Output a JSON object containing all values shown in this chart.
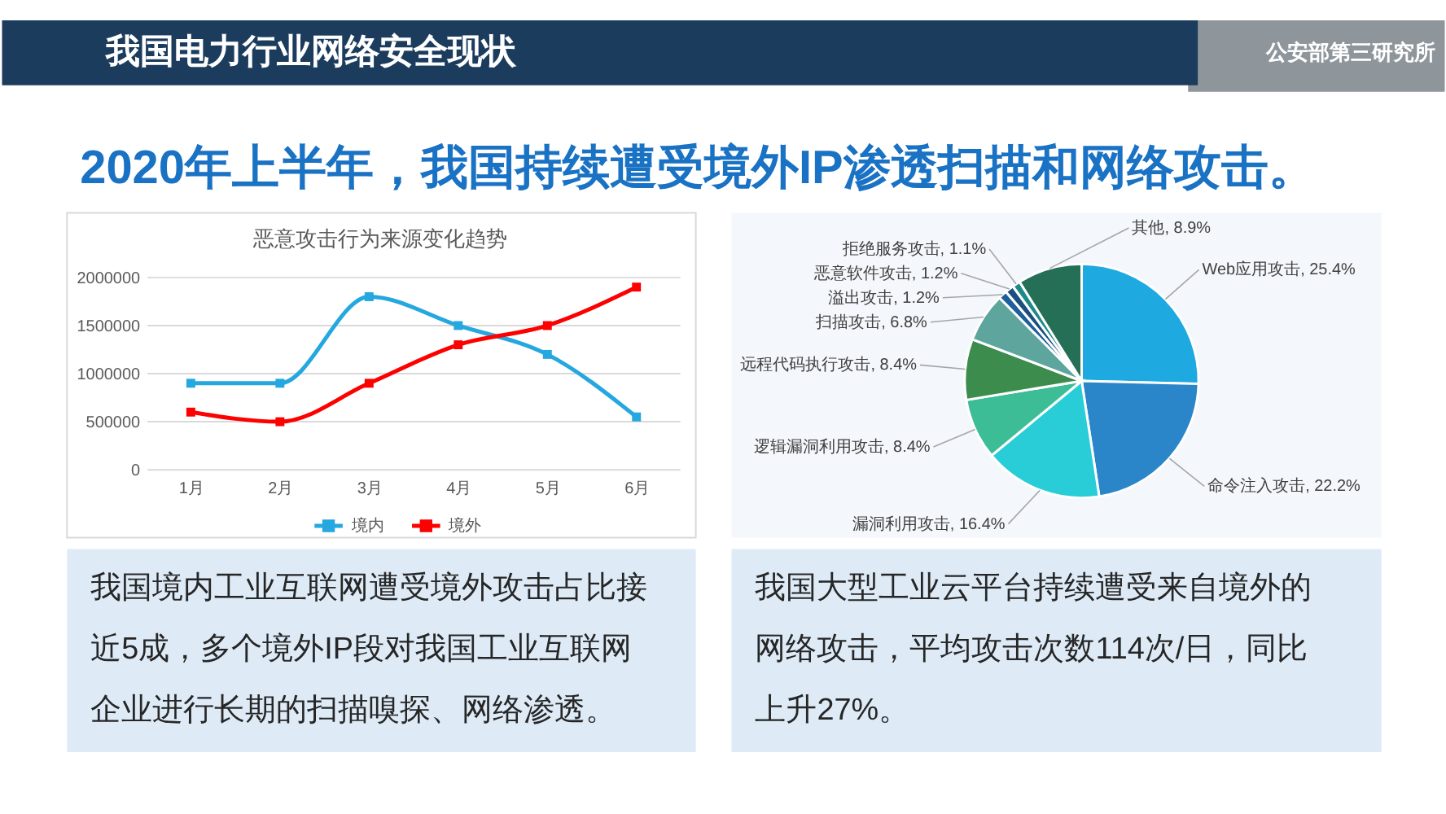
{
  "chart_data": [
    {
      "type": "other",
      "title": "我国电力行业网络安全现状",
      "subtitle": "2020年上半年，我国持续遭受境外IP渗透扫描和网络攻击。",
      "annotations": [
        "公安部第三研究所"
      ]
    },
    {
      "type": "line",
      "title": "恶意攻击行为来源变化趋势",
      "categories": [
        "1月",
        "2月",
        "3月",
        "4月",
        "5月",
        "6月"
      ],
      "series": [
        {
          "name": "境内",
          "color": "#25a7df",
          "values": [
            900000,
            900000,
            1800000,
            1500000,
            1200000,
            550000
          ]
        },
        {
          "name": "境外",
          "color": "#fe0000",
          "values": [
            600000,
            500000,
            900000,
            1300000,
            1500000,
            1900000
          ]
        }
      ],
      "ylim": [
        0,
        2000000
      ],
      "yticks": [
        0,
        500000,
        1000000,
        1500000,
        2000000
      ],
      "grid": "y",
      "legend": "bottom",
      "marker": "square",
      "annotations": [
        "我国境内工业互联网遭受境外攻击占比接近5成，多个境外IP段对我国工业互联网企业进行长期的扫描嗅探、网络渗透。"
      ]
    },
    {
      "type": "pie",
      "categories": [
        "Web应用攻击",
        "命令注入攻击",
        "漏洞利用攻击",
        "逻辑漏洞利用攻击",
        "远程代码执行攻击",
        "扫描攻击",
        "溢出攻击",
        "恶意软件攻击",
        "拒绝服务攻击",
        "其他"
      ],
      "values": [
        25.4,
        22.2,
        16.4,
        8.4,
        8.4,
        6.8,
        1.2,
        1.2,
        1.1,
        8.9
      ],
      "value_labels": [
        "25.4%",
        "22.2%",
        "16.4%",
        "8.4%",
        "8.4%",
        "6.8%",
        "1.2%",
        "1.2%",
        "1.1%",
        "8.9%"
      ],
      "colors": [
        "#1fa9e1",
        "#2a86c8",
        "#28cdd8",
        "#3dbd96",
        "#3c8c4e",
        "#5ea59e",
        "#1d5f9b",
        "#1a4f80",
        "#1e8a88",
        "#256f57"
      ],
      "annotations": [
        "我国大型工业云平台持续遭受来自境外的网络攻击，平均攻击次数114次/日，同比上升27%。"
      ]
    }
  ]
}
